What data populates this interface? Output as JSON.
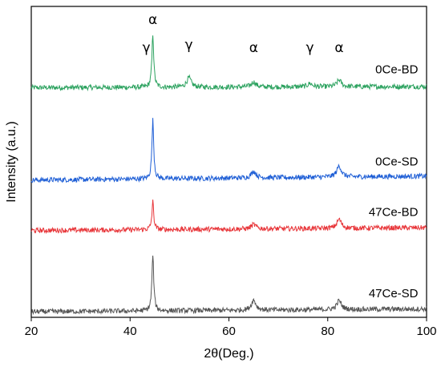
{
  "chart_data": {
    "type": "line",
    "title": "",
    "xlabel": "2θ(Deg.)",
    "ylabel": "Intensity (a.u.)",
    "xlim": [
      20,
      100
    ],
    "xticks": [
      20,
      40,
      60,
      80,
      100
    ],
    "yticks_shown": false,
    "grid": false,
    "series": [
      {
        "name": "0Ce-BD",
        "color": "#2ca25f",
        "baseline": 4.0,
        "end": 4.02,
        "peaks": [
          [
            44.6,
            0.95
          ],
          [
            51.9,
            0.17
          ],
          [
            65.0,
            0.09
          ],
          [
            76.4,
            0.06
          ],
          [
            82.3,
            0.12
          ]
        ]
      },
      {
        "name": "0Ce-SD",
        "color": "#1f5fd6",
        "baseline": 2.35,
        "end": 2.42,
        "peaks": [
          [
            44.6,
            1.05
          ],
          [
            65.0,
            0.12
          ],
          [
            82.3,
            0.2
          ]
        ]
      },
      {
        "name": "47Ce-BD",
        "color": "#e8363a",
        "baseline": 1.45,
        "end": 1.5,
        "peaks": [
          [
            44.6,
            0.5
          ],
          [
            65.0,
            0.08
          ],
          [
            82.3,
            0.16
          ]
        ]
      },
      {
        "name": "47Ce-SD",
        "color": "#555555",
        "baseline": 0.0,
        "end": 0.05,
        "peaks": [
          [
            44.6,
            1.0
          ],
          [
            65.0,
            0.18
          ],
          [
            82.3,
            0.16
          ]
        ]
      }
    ],
    "annotations": [
      {
        "text": "α",
        "x": 44.6
      },
      {
        "text": "γ",
        "x": 43.3
      },
      {
        "text": "γ",
        "x": 51.9
      },
      {
        "text": "α",
        "x": 65.0
      },
      {
        "text": "γ",
        "x": 76.4
      },
      {
        "text": "α",
        "x": 82.3
      }
    ]
  }
}
